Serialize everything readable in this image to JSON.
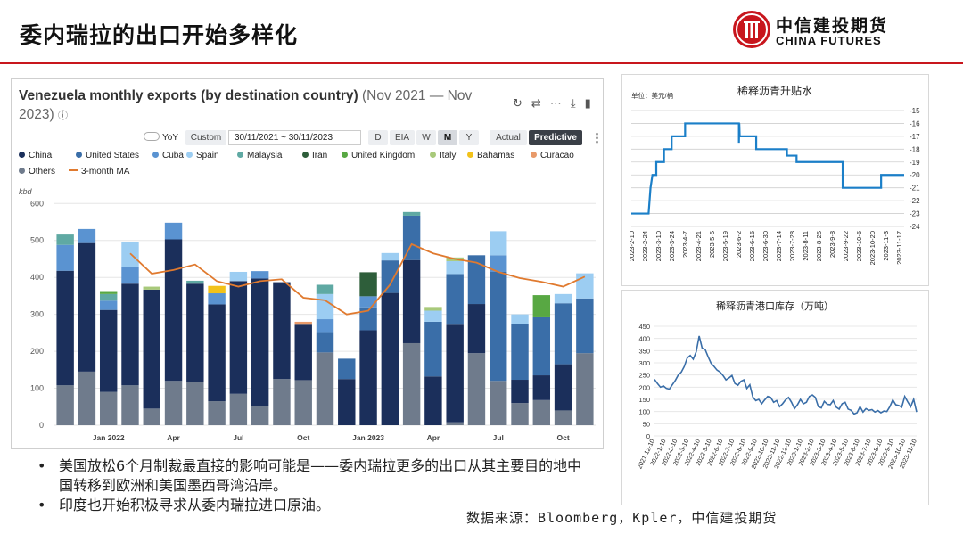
{
  "slide": {
    "title": "委内瑞拉的出口开始多样化",
    "logo_cn": "中信建投期货",
    "logo_en": "CHINA FUTURES",
    "bullets": [
      "美国放松6个月制裁最直接的影响可能是——委内瑞拉更多的出口从其主要目的地中国转移到欧洲和美国墨西哥湾沿岸。",
      "印度也开始积极寻求从委内瑞拉进口原油。"
    ],
    "source": "数据来源：Bloomberg，Kpler，中信建投期货",
    "colors": {
      "accent": "#c8161d"
    }
  },
  "kpler": {
    "title_bold": "Venezuela monthly exports (by destination country)",
    "title_range": "(Nov 2021 — Nov 2023)",
    "info_icon": "ⓘ",
    "toolbar_icons": [
      "refresh-icon",
      "swap-icon",
      "share-icon",
      "download-icon",
      "bookmark-icon"
    ],
    "yoy_label": "YoY",
    "custom_label": "Custom",
    "date_range": "30/11/2021  ~  30/11/2023",
    "period_buttons": [
      "D",
      "EIA",
      "W",
      "M",
      "Y"
    ],
    "selected_period": "M",
    "mode_buttons": [
      "Actual",
      "Predictive"
    ],
    "selected_mode": "Predictive",
    "more_icon": "⋮"
  },
  "chart_data": [
    {
      "type": "bar",
      "title": "Venezuela monthly exports (by destination country)",
      "ylabel": "kbd",
      "ylim": [
        0,
        620
      ],
      "yticks": [
        0,
        100,
        200,
        300,
        400,
        500,
        600
      ],
      "x_tick_labels": [
        "Jan 2022",
        "Apr",
        "Jul",
        "Oct",
        "Jan 2023",
        "Apr",
        "Jul",
        "Oct"
      ],
      "categories": [
        "Nov 2021",
        "Dec 2021",
        "Jan 2022",
        "Feb 2022",
        "Mar 2022",
        "Apr 2022",
        "May 2022",
        "Jun 2022",
        "Jul 2022",
        "Aug 2022",
        "Sep 2022",
        "Oct 2022",
        "Nov 2022",
        "Dec 2022",
        "Jan 2023",
        "Feb 2023",
        "Mar 2023",
        "Apr 2023",
        "May 2023",
        "Jun 2023",
        "Jul 2023",
        "Aug 2023",
        "Sep 2023",
        "Oct 2023",
        "Nov 2023"
      ],
      "stacked": true,
      "series": [
        {
          "name": "Others",
          "color": "#6f7b8c",
          "values": [
            108,
            145,
            90,
            108,
            45,
            120,
            118,
            65,
            85,
            52,
            125,
            122,
            197,
            0,
            0,
            0,
            222,
            0,
            8,
            195,
            120,
            60,
            68,
            40,
            195
          ]
        },
        {
          "name": "China",
          "color": "#1b2f5b",
          "values": [
            310,
            348,
            222,
            275,
            322,
            383,
            265,
            262,
            305,
            345,
            262,
            150,
            0,
            125,
            257,
            358,
            225,
            132,
            264,
            133,
            0,
            63,
            67,
            125,
            0
          ]
        },
        {
          "name": "United States",
          "color": "#3a6ea8",
          "values": [
            0,
            0,
            0,
            0,
            0,
            0,
            0,
            0,
            0,
            0,
            0,
            0,
            55,
            55,
            62,
            88,
            120,
            148,
            137,
            132,
            295,
            152,
            157,
            165,
            148
          ]
        },
        {
          "name": "Cuba",
          "color": "#5a93d1",
          "values": [
            70,
            38,
            25,
            45,
            0,
            45,
            0,
            30,
            0,
            20,
            0,
            0,
            35,
            0,
            30,
            0,
            0,
            0,
            0,
            0,
            45,
            0,
            0,
            0,
            0
          ]
        },
        {
          "name": "Spain",
          "color": "#9ccdf2",
          "values": [
            0,
            0,
            0,
            68,
            0,
            0,
            0,
            0,
            25,
            0,
            0,
            0,
            68,
            0,
            0,
            20,
            0,
            30,
            35,
            0,
            65,
            25,
            0,
            25,
            68
          ]
        },
        {
          "name": "Malaysia",
          "color": "#5fa9a3",
          "values": [
            28,
            0,
            18,
            0,
            0,
            0,
            8,
            0,
            0,
            0,
            0,
            0,
            25,
            0,
            0,
            0,
            10,
            0,
            0,
            0,
            0,
            0,
            0,
            0,
            0
          ]
        },
        {
          "name": "Iran",
          "color": "#2e5e3a",
          "values": [
            0,
            0,
            0,
            0,
            0,
            0,
            0,
            0,
            0,
            0,
            0,
            0,
            0,
            0,
            65,
            0,
            0,
            0,
            0,
            0,
            0,
            0,
            0,
            0,
            0
          ]
        },
        {
          "name": "United Kingdom",
          "color": "#58a843",
          "values": [
            0,
            0,
            8,
            0,
            0,
            0,
            0,
            0,
            0,
            0,
            0,
            0,
            0,
            0,
            0,
            0,
            0,
            0,
            0,
            0,
            0,
            0,
            60,
            0,
            0
          ]
        },
        {
          "name": "Italy",
          "color": "#a8c97a",
          "values": [
            0,
            0,
            0,
            0,
            8,
            0,
            0,
            0,
            0,
            0,
            0,
            0,
            0,
            0,
            0,
            0,
            0,
            10,
            10,
            0,
            0,
            0,
            0,
            0,
            0
          ]
        },
        {
          "name": "Bahamas",
          "color": "#f2c21a",
          "values": [
            0,
            0,
            0,
            0,
            0,
            0,
            0,
            20,
            0,
            0,
            0,
            0,
            0,
            0,
            0,
            0,
            0,
            0,
            0,
            0,
            0,
            0,
            0,
            0,
            0
          ]
        },
        {
          "name": "Curacao",
          "color": "#e89a6a",
          "values": [
            0,
            0,
            0,
            0,
            0,
            0,
            0,
            0,
            0,
            0,
            0,
            8,
            0,
            0,
            0,
            0,
            0,
            0,
            0,
            0,
            0,
            0,
            0,
            0,
            0
          ]
        }
      ],
      "ma_series": {
        "name": "3-month MA",
        "color": "#e07a2f",
        "values": [
          null,
          null,
          null,
          465,
          410,
          420,
          435,
          390,
          375,
          390,
          395,
          345,
          338,
          300,
          310,
          380,
          490,
          465,
          450,
          440,
          415,
          398,
          388,
          375,
          402
        ]
      }
    },
    {
      "type": "line",
      "title": "稀释沥青升贴水",
      "ylabel": "单位：美元/桶",
      "ylim": [
        -24,
        -15
      ],
      "yticks": [
        -15,
        -16,
        -17,
        -18,
        -19,
        -20,
        -21,
        -22,
        -23,
        -24
      ],
      "x_tick_labels": [
        "2023-2-10",
        "2023-2-24",
        "2023-3-10",
        "2023-3-24",
        "2023-4-7",
        "2023-4-21",
        "2023-5-5",
        "2023-5-19",
        "2023-6-2",
        "2023-6-16",
        "2023-6-30",
        "2023-7-14",
        "2023-7-28",
        "2023-8-11",
        "2023-8-25",
        "2023-9-8",
        "2023-9-22",
        "2023-10-6",
        "2023-10-20",
        "2023-11-3",
        "2023-11-17"
      ],
      "series": [
        {
          "color": "#1b7fc8",
          "x": [
            0,
            0.9,
            1.0,
            1.1,
            1.3,
            1.3,
            1.7,
            1.7,
            2.1,
            2.1,
            2.8,
            2.8,
            3.3,
            3.3,
            5.6,
            5.6,
            5.62,
            5.64,
            5.7,
            5.7,
            6.5,
            6.5,
            7.0,
            7.0,
            8.1,
            8.1,
            8.6,
            8.6,
            11.0,
            11.0,
            13.0,
            13.0,
            14.2
          ],
          "y": [
            -23,
            -23,
            -21,
            -20,
            -20,
            -19,
            -19,
            -18,
            -18,
            -17,
            -17,
            -16,
            -16,
            -16,
            -16,
            -17.5,
            -16,
            -17,
            -17,
            -17,
            -17,
            -18,
            -18,
            -18,
            -18,
            -18.5,
            -18.5,
            -19,
            -19,
            -21,
            -21,
            -20,
            -20
          ]
        }
      ]
    },
    {
      "type": "line",
      "title": "稀释沥青港口库存（万吨）",
      "ylim": [
        0,
        450
      ],
      "yticks": [
        0,
        50,
        100,
        150,
        200,
        250,
        300,
        350,
        400,
        450
      ],
      "x_tick_labels": [
        "2021-12-10",
        "2022-1-10",
        "2022-2-10",
        "2022-3-10",
        "2022-4-10",
        "2022-5-10",
        "2022-6-10",
        "2022-7-10",
        "2022-8-10",
        "2022-9-10",
        "2022-10-10",
        "2022-11-10",
        "2022-12-10",
        "2023-1-10",
        "2023-2-10",
        "2023-3-10",
        "2023-4-10",
        "2023-5-10",
        "2023-6-10",
        "2023-7-10",
        "2023-8-10",
        "2023-9-10",
        "2023-10-10",
        "2023-11-10"
      ],
      "series": [
        {
          "color": "#3a6ea8",
          "values": [
            232,
            215,
            200,
            205,
            195,
            192,
            210,
            228,
            250,
            262,
            285,
            320,
            330,
            315,
            345,
            410,
            360,
            355,
            325,
            298,
            285,
            270,
            262,
            248,
            230,
            238,
            248,
            215,
            208,
            224,
            230,
            195,
            210,
            160,
            145,
            150,
            132,
            148,
            162,
            158,
            138,
            145,
            120,
            132,
            148,
            158,
            138,
            112,
            128,
            150,
            132,
            138,
            162,
            168,
            158,
            120,
            115,
            142,
            130,
            128,
            145,
            118,
            110,
            132,
            138,
            110,
            105,
            90,
            95,
            120,
            98,
            112,
            105,
            108,
            98,
            104,
            95,
            102,
            100,
            120,
            148,
            128,
            125,
            118,
            162,
            140,
            120,
            150,
            98
          ]
        }
      ]
    }
  ]
}
